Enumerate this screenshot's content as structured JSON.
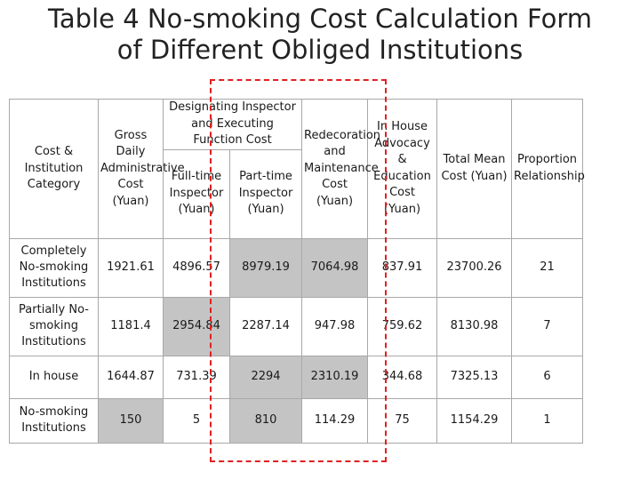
{
  "title": {
    "line1": "Table 4  No-smoking Cost Calculation Form",
    "line2": "of Different Obliged Institutions"
  },
  "table": {
    "headers": {
      "category": "Cost & Institution Category",
      "gross": "Gross Daily Administrative Cost (Yuan)",
      "designating": "Designating Inspector and Executing Function Cost",
      "full_time": "Full-time Inspector (Yuan)",
      "part_time": "Part-time Inspector (Yuan)",
      "redecoration": "Redecoration and Maintenance Cost (Yuan)",
      "advocacy": "In House Advocacy & Education Cost (Yuan)",
      "total": "Total Mean Cost (Yuan)",
      "proportion": "Proportion Relationship"
    },
    "rows": [
      {
        "category": "Completely No-smoking Institutions",
        "gross": "1921.61",
        "full_time": "4896.57",
        "part_time": "8979.19",
        "redecoration": "7064.98",
        "advocacy": "837.91",
        "total": "23700.26",
        "proportion": "21"
      },
      {
        "category": "Partially No-smoking Institutions",
        "gross": "1181.4",
        "full_time": "2954.84",
        "part_time": "2287.14",
        "redecoration": "947.98",
        "advocacy": "759.62",
        "total": "8130.98",
        "proportion": "7"
      },
      {
        "category": "In house",
        "gross": "1644.87",
        "full_time": "731.39",
        "part_time": "2294",
        "redecoration": "2310.19",
        "advocacy": "344.68",
        "total": "7325.13",
        "proportion": "6"
      },
      {
        "category": "No-smoking Institutions",
        "gross": "150",
        "full_time": "5",
        "part_time": "810",
        "redecoration": "114.29",
        "advocacy": "75",
        "total": "1154.29",
        "proportion": "1"
      }
    ]
  }
}
